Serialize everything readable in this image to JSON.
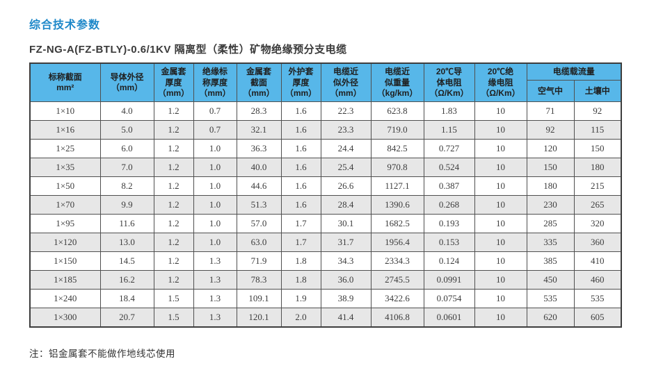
{
  "page": {
    "title": "综合技术参数",
    "subtitle": "FZ-NG-A(FZ-BTLY)-0.6/1KV 隔离型（柔性）矿物绝缘预分支电缆",
    "note": "注：铝金属套不能做作地线芯使用"
  },
  "colors": {
    "title_blue": "#1e88c9",
    "header_bg": "#57b7e9",
    "stripe_gray": "#e7e7e7",
    "border": "#4f4f4f"
  },
  "table": {
    "headers": [
      "标称截面\nmm²",
      "导体外径\n（mm）",
      "金属套\n厚度\n（mm）",
      "绝缘标\n称厚度\n（mm）",
      "金属套\n截面\n（mm）",
      "外护套\n厚度\n（mm）",
      "电缆近\n似外径\n（mm）",
      "电缆近\n似重量\n（kg/km）",
      "20℃导\n体电阻\n（Ω/Km）",
      "20℃绝\n缘电阻\n（Ω/Km）"
    ],
    "group_header": "电缆载流量",
    "sub_headers": [
      "空气中",
      "土壤中"
    ],
    "rows": [
      [
        "1×10",
        "4.0",
        "1.2",
        "0.7",
        "28.3",
        "1.6",
        "22.3",
        "623.8",
        "1.83",
        "10",
        "71",
        "92"
      ],
      [
        "1×16",
        "5.0",
        "1.2",
        "0.7",
        "32.1",
        "1.6",
        "23.3",
        "719.0",
        "1.15",
        "10",
        "92",
        "115"
      ],
      [
        "1×25",
        "6.0",
        "1.2",
        "1.0",
        "36.3",
        "1.6",
        "24.4",
        "842.5",
        "0.727",
        "10",
        "120",
        "150"
      ],
      [
        "1×35",
        "7.0",
        "1.2",
        "1.0",
        "40.0",
        "1.6",
        "25.4",
        "970.8",
        "0.524",
        "10",
        "150",
        "180"
      ],
      [
        "1×50",
        "8.2",
        "1.2",
        "1.0",
        "44.6",
        "1.6",
        "26.6",
        "1127.1",
        "0.387",
        "10",
        "180",
        "215"
      ],
      [
        "1×70",
        "9.9",
        "1.2",
        "1.0",
        "51.3",
        "1.6",
        "28.4",
        "1390.6",
        "0.268",
        "10",
        "230",
        "265"
      ],
      [
        "1×95",
        "11.6",
        "1.2",
        "1.0",
        "57.0",
        "1.7",
        "30.1",
        "1682.5",
        "0.193",
        "10",
        "285",
        "320"
      ],
      [
        "1×120",
        "13.0",
        "1.2",
        "1.0",
        "63.0",
        "1.7",
        "31.7",
        "1956.4",
        "0.153",
        "10",
        "335",
        "360"
      ],
      [
        "1×150",
        "14.5",
        "1.2",
        "1.3",
        "71.9",
        "1.8",
        "34.3",
        "2334.3",
        "0.124",
        "10",
        "385",
        "410"
      ],
      [
        "1×185",
        "16.2",
        "1.2",
        "1.3",
        "78.3",
        "1.8",
        "36.0",
        "2745.5",
        "0.0991",
        "10",
        "450",
        "460"
      ],
      [
        "1×240",
        "18.4",
        "1.5",
        "1.3",
        "109.1",
        "1.9",
        "38.9",
        "3422.6",
        "0.0754",
        "10",
        "535",
        "535"
      ],
      [
        "1×300",
        "20.7",
        "1.5",
        "1.3",
        "120.1",
        "2.0",
        "41.4",
        "4106.8",
        "0.0601",
        "10",
        "620",
        "605"
      ]
    ]
  }
}
